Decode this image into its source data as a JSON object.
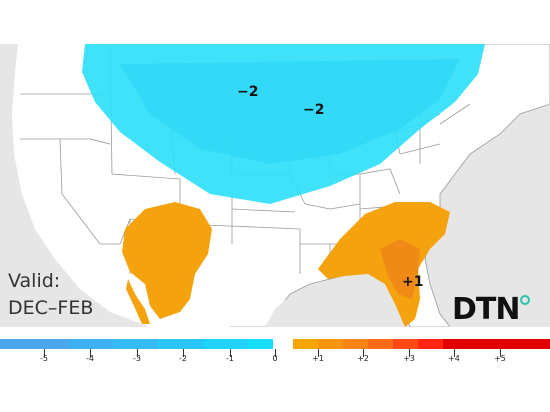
{
  "map": {
    "valid_label": "Valid:",
    "valid_period": "DEC–FEB",
    "anomaly_labels": [
      "−2",
      "−2",
      "+1"
    ],
    "brand": "DTN"
  },
  "legend": {
    "labels": [
      "-5",
      "-4",
      "-3",
      "-2",
      "-1",
      "0",
      "+1",
      "+2",
      "+3",
      "+4",
      "+5"
    ],
    "colors": [
      "#4aa7f0",
      "#3fb1f5",
      "#35bcf7",
      "#2ac7f9",
      "#20d3fa",
      "#18e0fa",
      "#ffffff",
      "#f7a60a",
      "#f89610",
      "#f98315",
      "#fb6b18",
      "#fd4a14",
      "#ff250f",
      "#e00000"
    ]
  },
  "colors": {
    "cold_region": "#2fe0f8",
    "warm_region": "#f5a20f",
    "warm_core": "#ef8a16",
    "land": "#ffffff",
    "water": "#e6e6e6",
    "borders": "#9a9a9a"
  }
}
